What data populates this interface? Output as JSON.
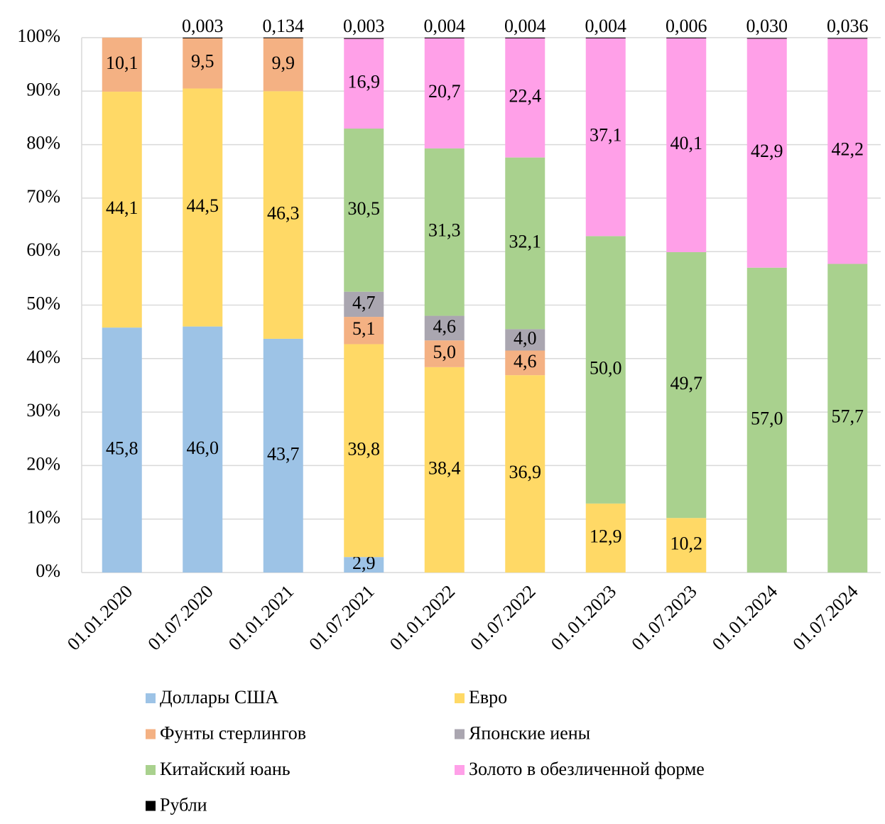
{
  "chart_data": {
    "type": "stacked_bar",
    "categories": [
      "01.01.2020",
      "01.07.2020",
      "01.01.2021",
      "01.07.2021",
      "01.01.2022",
      "01.07.2022",
      "01.01.2023",
      "01.07.2023",
      "01.01.2024",
      "01.07.2024"
    ],
    "ylim": [
      0,
      100
    ],
    "yticks": [
      {
        "value": 0,
        "label": "0%"
      },
      {
        "value": 10,
        "label": "10%"
      },
      {
        "value": 20,
        "label": "20%"
      },
      {
        "value": 30,
        "label": "30%"
      },
      {
        "value": 40,
        "label": "40%"
      },
      {
        "value": 50,
        "label": "50%"
      },
      {
        "value": 60,
        "label": "60%"
      },
      {
        "value": 70,
        "label": "70%"
      },
      {
        "value": 80,
        "label": "80%"
      },
      {
        "value": 90,
        "label": "90%"
      },
      {
        "value": 100,
        "label": "100%"
      }
    ],
    "grid": true,
    "legend": "bottom",
    "series": [
      {
        "name": "Доллары США",
        "color": "#9dc3e6",
        "values": [
          45.8,
          46.0,
          43.7,
          2.9,
          null,
          null,
          null,
          null,
          null,
          null
        ],
        "value_labels": [
          "45,8",
          "46,0",
          "43,7",
          "2,9",
          null,
          null,
          null,
          null,
          null,
          null
        ]
      },
      {
        "name": "Евро",
        "color": "#ffd966",
        "values": [
          44.1,
          44.5,
          46.3,
          39.8,
          38.4,
          36.9,
          12.9,
          10.2,
          null,
          null
        ],
        "value_labels": [
          "44,1",
          "44,5",
          "46,3",
          "39,8",
          "38,4",
          "36,9",
          "12,9",
          "10,2",
          null,
          null
        ]
      },
      {
        "name": "Фунты стерлингов",
        "color": "#f4b183",
        "values": [
          10.1,
          9.5,
          9.9,
          5.1,
          5.0,
          4.6,
          null,
          null,
          null,
          null
        ],
        "value_labels": [
          "10,1",
          "9,5",
          "9,9",
          "5,1",
          "5,0",
          "4,6",
          null,
          null,
          null,
          null
        ]
      },
      {
        "name": "Японские иены",
        "color": "#aaa6b0",
        "values": [
          null,
          null,
          null,
          4.7,
          4.6,
          4.0,
          null,
          null,
          null,
          null
        ],
        "value_labels": [
          null,
          null,
          null,
          "4,7",
          "4,6",
          "4,0",
          null,
          null,
          null,
          null
        ]
      },
      {
        "name": "Китайский юань",
        "color": "#a9d18e",
        "values": [
          null,
          null,
          null,
          30.5,
          31.3,
          32.1,
          50.0,
          49.7,
          57.0,
          57.7
        ],
        "value_labels": [
          null,
          null,
          null,
          "30,5",
          "31,3",
          "32,1",
          "50,0",
          "49,7",
          "57,0",
          "57,7"
        ]
      },
      {
        "name": "Золото в обезличенной форме",
        "color": "#ffa0e8",
        "values": [
          null,
          null,
          null,
          16.9,
          20.7,
          22.4,
          37.1,
          40.1,
          42.9,
          42.2
        ],
        "value_labels": [
          null,
          null,
          null,
          "16,9",
          "20,7",
          "22,4",
          "37,1",
          "40,1",
          "42,9",
          "42,2"
        ]
      },
      {
        "name": "Рубли",
        "color": "#000000",
        "values": [
          null,
          0.003,
          0.134,
          0.003,
          0.004,
          0.004,
          0.004,
          0.006,
          0.03,
          0.036
        ],
        "value_labels": [
          null,
          "0,003",
          "0,134",
          "0,003",
          "0,004",
          "0,004",
          "0,004",
          "0,006",
          "0,030",
          "0,036"
        ]
      }
    ]
  }
}
